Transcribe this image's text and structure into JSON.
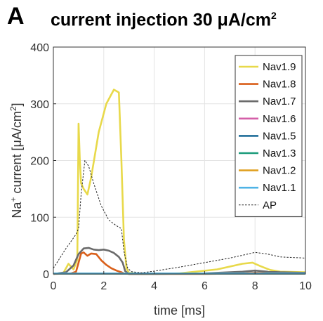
{
  "panel_label": "A",
  "title": {
    "main": "current injection 30 μA/cm",
    "sup": "2"
  },
  "chart_data": {
    "type": "line",
    "xlabel": "time [ms]",
    "ylabel_parts": {
      "pre": "Na",
      "sup_plus": "+",
      "mid": " current [μA/cm",
      "sup_2": "2",
      "post": "]"
    },
    "xlim": [
      0,
      10
    ],
    "ylim": [
      0,
      400
    ],
    "xticks": [
      0,
      2,
      4,
      6,
      8,
      10
    ],
    "yticks": [
      0,
      100,
      200,
      300,
      400
    ],
    "grid": true,
    "legend_position": "top-right",
    "series": [
      {
        "name": "Nav1.9",
        "color": "#e8d94a",
        "dash": false,
        "x": [
          0,
          0.4,
          0.6,
          0.8,
          0.95,
          1.0,
          1.05,
          1.1,
          1.2,
          1.35,
          1.5,
          1.8,
          2.1,
          2.4,
          2.6,
          2.7,
          2.8,
          2.9,
          3.0,
          3.5,
          5,
          6.5,
          7.5,
          7.9,
          8.2,
          8.6,
          9,
          10
        ],
        "y": [
          0,
          2,
          18,
          8,
          25,
          265,
          200,
          160,
          150,
          140,
          170,
          250,
          300,
          325,
          320,
          200,
          60,
          10,
          2,
          0,
          1,
          8,
          18,
          20,
          14,
          7,
          4,
          3
        ]
      },
      {
        "name": "Nav1.8",
        "color": "#d95f1a",
        "dash": false,
        "x": [
          0,
          0.7,
          0.9,
          1.0,
          1.1,
          1.2,
          1.35,
          1.5,
          1.7,
          1.9,
          2.1,
          2.3,
          2.5,
          2.7,
          2.8,
          3.0,
          4,
          6,
          7.5,
          8.0,
          8.5,
          9,
          10
        ],
        "y": [
          0,
          1,
          4,
          20,
          36,
          38,
          32,
          36,
          35,
          24,
          16,
          10,
          6,
          3,
          1,
          0,
          0,
          0,
          1,
          2,
          1.5,
          1,
          0.5
        ]
      },
      {
        "name": "Nav1.7",
        "color": "#6b6b6b",
        "dash": false,
        "x": [
          0,
          0.5,
          0.8,
          1.0,
          1.2,
          1.4,
          1.6,
          1.8,
          2.0,
          2.2,
          2.4,
          2.6,
          2.75,
          2.85,
          3.0,
          4,
          6,
          7.5,
          8.0,
          8.5,
          9,
          10
        ],
        "y": [
          0,
          3,
          15,
          35,
          45,
          46,
          43,
          42,
          43,
          41,
          37,
          30,
          20,
          5,
          0,
          0,
          1,
          4,
          6,
          4,
          3,
          2
        ]
      },
      {
        "name": "Nav1.6",
        "color": "#d45fa8",
        "dash": false,
        "x": [
          0,
          10
        ],
        "y": [
          0.5,
          0.5
        ]
      },
      {
        "name": "Nav1.5",
        "color": "#1f6d98",
        "dash": false,
        "x": [
          0,
          10
        ],
        "y": [
          0.5,
          0.5
        ]
      },
      {
        "name": "Nav1.3",
        "color": "#1a9a7a",
        "dash": false,
        "x": [
          0,
          10
        ],
        "y": [
          0.6,
          0.6
        ]
      },
      {
        "name": "Nav1.2",
        "color": "#e0a020",
        "dash": false,
        "x": [
          0,
          10
        ],
        "y": [
          0.7,
          0.7
        ]
      },
      {
        "name": "Nav1.1",
        "color": "#4fb3e6",
        "dash": false,
        "x": [
          0,
          10
        ],
        "y": [
          0.8,
          0.8
        ]
      },
      {
        "name": "AP",
        "color": "#222222",
        "dash": true,
        "x": [
          0,
          0.5,
          0.9,
          1.0,
          1.1,
          1.25,
          1.4,
          1.6,
          1.9,
          2.2,
          2.5,
          2.7,
          2.8,
          2.95,
          3.1,
          3.5,
          4,
          5,
          6,
          7,
          7.5,
          8.0,
          8.5,
          9,
          10
        ],
        "y": [
          10,
          45,
          70,
          80,
          140,
          200,
          190,
          160,
          120,
          95,
          85,
          80,
          40,
          10,
          4,
          2,
          5,
          12,
          20,
          28,
          33,
          38,
          35,
          30,
          28
        ]
      }
    ]
  }
}
